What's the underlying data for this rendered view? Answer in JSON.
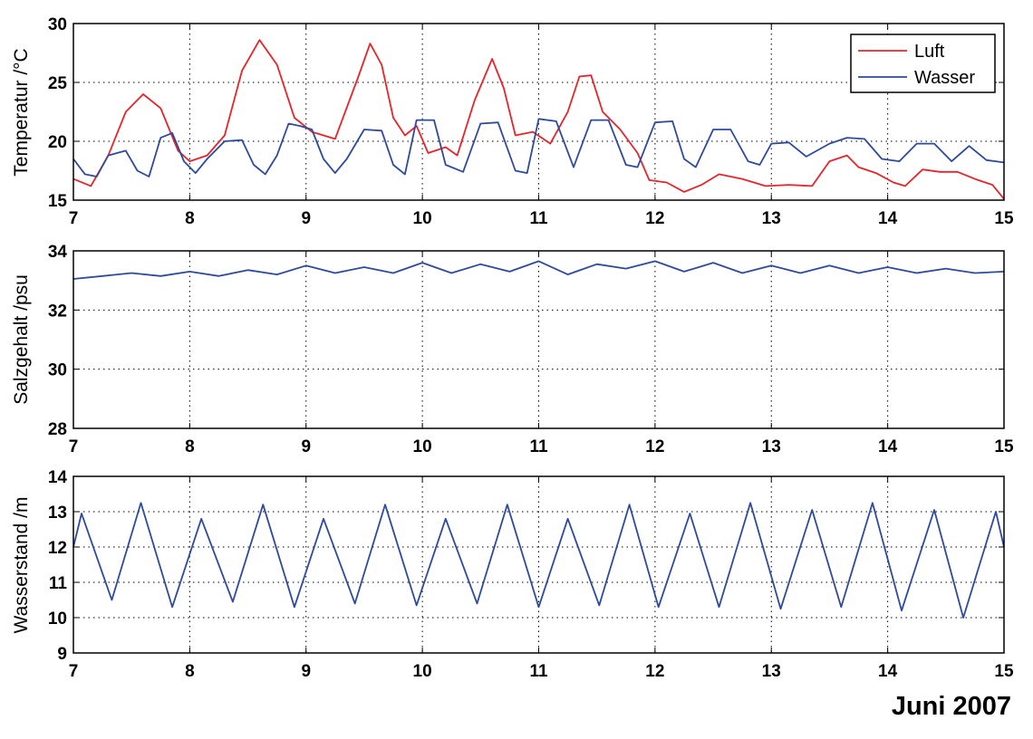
{
  "date_label": "Juni 2007",
  "chart_data": [
    {
      "type": "line",
      "ylabel": "Temperatur /°C",
      "xlim": [
        7,
        15
      ],
      "ylim": [
        15,
        30
      ],
      "xticks": [
        7,
        8,
        9,
        10,
        11,
        12,
        13,
        14,
        15
      ],
      "yticks": [
        15,
        20,
        25,
        30
      ],
      "grid": true,
      "legend": "top-right",
      "series": [
        {
          "name": "Luft",
          "color": "#e8242b",
          "x": [
            7.0,
            7.15,
            7.3,
            7.45,
            7.6,
            7.75,
            7.9,
            8.0,
            8.15,
            8.3,
            8.45,
            8.6,
            8.75,
            8.9,
            9.05,
            9.25,
            9.45,
            9.55,
            9.65,
            9.75,
            9.85,
            9.95,
            10.05,
            10.2,
            10.3,
            10.45,
            10.6,
            10.7,
            10.8,
            10.95,
            11.1,
            11.25,
            11.35,
            11.45,
            11.55,
            11.7,
            11.85,
            11.95,
            12.1,
            12.25,
            12.4,
            12.55,
            12.75,
            12.95,
            13.15,
            13.35,
            13.5,
            13.65,
            13.75,
            13.9,
            14.05,
            14.15,
            14.3,
            14.45,
            14.6,
            14.75,
            14.9,
            15.0
          ],
          "y": [
            16.8,
            16.2,
            18.8,
            22.5,
            24.0,
            22.8,
            19.2,
            18.3,
            18.8,
            20.5,
            26.0,
            28.6,
            26.5,
            22.0,
            20.8,
            20.2,
            25.5,
            28.3,
            26.5,
            22.0,
            20.5,
            21.3,
            19.0,
            19.5,
            18.8,
            23.5,
            27.0,
            24.5,
            20.5,
            20.8,
            19.8,
            22.5,
            25.5,
            25.6,
            22.5,
            21.0,
            19.0,
            16.7,
            16.5,
            15.7,
            16.3,
            17.2,
            16.8,
            16.2,
            16.3,
            16.2,
            18.3,
            18.8,
            17.8,
            17.3,
            16.5,
            16.2,
            17.6,
            17.4,
            17.4,
            16.8,
            16.3,
            15.1
          ]
        },
        {
          "name": "Wasser",
          "color": "#2e4a9e",
          "x": [
            7.0,
            7.1,
            7.2,
            7.3,
            7.45,
            7.55,
            7.65,
            7.75,
            7.85,
            7.95,
            8.05,
            8.15,
            8.3,
            8.45,
            8.55,
            8.65,
            8.75,
            8.85,
            8.95,
            9.05,
            9.15,
            9.25,
            9.35,
            9.5,
            9.65,
            9.75,
            9.85,
            9.95,
            10.1,
            10.2,
            10.35,
            10.5,
            10.65,
            10.8,
            10.9,
            11.0,
            11.15,
            11.3,
            11.45,
            11.6,
            11.75,
            11.85,
            12.0,
            12.15,
            12.25,
            12.35,
            12.5,
            12.65,
            12.8,
            12.9,
            13.0,
            13.15,
            13.3,
            13.5,
            13.65,
            13.8,
            13.95,
            14.1,
            14.25,
            14.4,
            14.55,
            14.7,
            14.85,
            15.0
          ],
          "y": [
            18.5,
            17.2,
            17.0,
            18.8,
            19.2,
            17.5,
            17.0,
            20.3,
            20.7,
            18.3,
            17.3,
            18.5,
            20.0,
            20.1,
            18.0,
            17.2,
            18.8,
            21.5,
            21.3,
            21.0,
            18.5,
            17.3,
            18.5,
            21.0,
            20.9,
            18.0,
            17.2,
            21.8,
            21.8,
            18.0,
            17.4,
            21.5,
            21.6,
            17.5,
            17.3,
            21.9,
            21.7,
            17.8,
            21.8,
            21.8,
            18.0,
            17.8,
            21.6,
            21.7,
            18.5,
            17.8,
            21.0,
            21.0,
            18.3,
            18.0,
            19.8,
            19.9,
            18.7,
            19.8,
            20.3,
            20.2,
            18.5,
            18.3,
            19.8,
            19.8,
            18.3,
            19.6,
            18.4,
            18.2
          ]
        }
      ]
    },
    {
      "type": "line",
      "ylabel": "Salzgehalt /psu",
      "xlim": [
        7,
        15
      ],
      "ylim": [
        28,
        34
      ],
      "xticks": [
        7,
        8,
        9,
        10,
        11,
        12,
        13,
        14,
        15
      ],
      "yticks": [
        28,
        30,
        32,
        34
      ],
      "grid": true,
      "series": [
        {
          "color": "#2e4a9e",
          "x": [
            7.0,
            7.25,
            7.5,
            7.75,
            8.0,
            8.25,
            8.5,
            8.75,
            9.0,
            9.25,
            9.5,
            9.75,
            10.0,
            10.25,
            10.5,
            10.75,
            11.0,
            11.25,
            11.5,
            11.75,
            12.0,
            12.25,
            12.5,
            12.75,
            13.0,
            13.25,
            13.5,
            13.75,
            14.0,
            14.25,
            14.5,
            14.75,
            15.0
          ],
          "y": [
            33.05,
            33.15,
            33.25,
            33.15,
            33.3,
            33.15,
            33.35,
            33.2,
            33.5,
            33.25,
            33.45,
            33.25,
            33.6,
            33.25,
            33.55,
            33.3,
            33.65,
            33.2,
            33.55,
            33.4,
            33.65,
            33.3,
            33.6,
            33.25,
            33.5,
            33.25,
            33.5,
            33.25,
            33.45,
            33.25,
            33.4,
            33.25,
            33.3
          ]
        }
      ]
    },
    {
      "type": "line",
      "ylabel": "Wasserstand /m",
      "xlim": [
        7,
        15
      ],
      "ylim": [
        9,
        14
      ],
      "xticks": [
        7,
        8,
        9,
        10,
        11,
        12,
        13,
        14,
        15
      ],
      "yticks": [
        9,
        10,
        11,
        12,
        13,
        14
      ],
      "grid": true,
      "series": [
        {
          "color": "#2e4a9e",
          "x": [
            7.0,
            7.07,
            7.33,
            7.58,
            7.85,
            8.1,
            8.37,
            8.63,
            8.9,
            9.15,
            9.42,
            9.68,
            9.95,
            10.2,
            10.47,
            10.73,
            11.0,
            11.25,
            11.52,
            11.78,
            12.03,
            12.3,
            12.55,
            12.82,
            13.08,
            13.35,
            13.6,
            13.87,
            14.12,
            14.4,
            14.65,
            14.93,
            15.0
          ],
          "y": [
            12.0,
            12.95,
            10.5,
            13.25,
            10.3,
            12.8,
            10.45,
            13.2,
            10.3,
            12.8,
            10.4,
            13.2,
            10.35,
            12.8,
            10.4,
            13.2,
            10.3,
            12.8,
            10.35,
            13.2,
            10.3,
            12.95,
            10.3,
            13.25,
            10.25,
            13.05,
            10.3,
            13.25,
            10.2,
            13.05,
            10.0,
            13.0,
            12.0
          ]
        }
      ]
    }
  ]
}
